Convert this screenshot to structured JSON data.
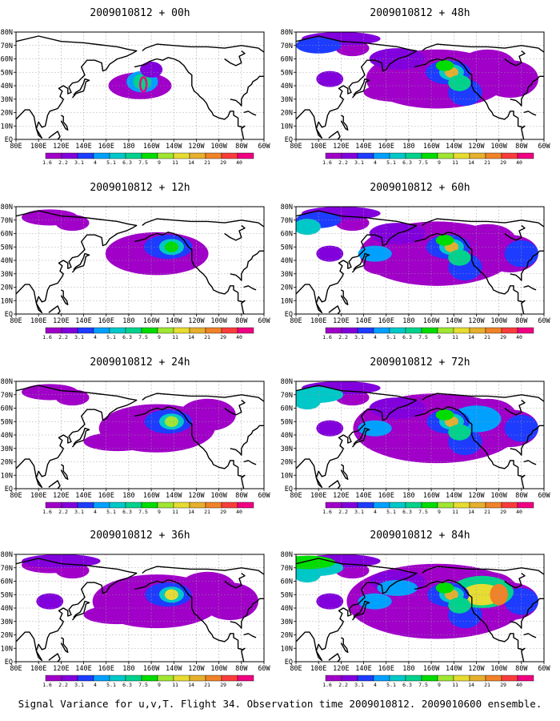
{
  "figure": {
    "caption": "Signal Variance for u,v,T. Flight 34. Observation time 2009010812. 2009010600 ensemble."
  },
  "axes": {
    "x_ticks": [
      "80E",
      "100E",
      "120E",
      "140E",
      "160E",
      "180",
      "160W",
      "140W",
      "120W",
      "100W",
      "80W",
      "60W"
    ],
    "y_ticks": [
      "80N",
      "70N",
      "60N",
      "50N",
      "40N",
      "30N",
      "20N",
      "10N",
      "EQ"
    ]
  },
  "colorbar": {
    "labels": [
      "1.6",
      "2.2",
      "3.1",
      "4",
      "5.1",
      "6.3",
      "7.5",
      "9",
      "11",
      "14",
      "21",
      "29",
      "40"
    ],
    "colors": [
      "#a000c8",
      "#8200dc",
      "#1e3cff",
      "#00a0ff",
      "#00c8c8",
      "#00d28c",
      "#00dc00",
      "#a0e632",
      "#e6dc32",
      "#e6af2d",
      "#f08228",
      "#fa3c3c",
      "#f00082"
    ]
  },
  "panels": [
    {
      "id": "p00",
      "title": "2009010812 + 00h",
      "level": 0
    },
    {
      "id": "p48",
      "title": "2009010812 + 48h",
      "level": 4
    },
    {
      "id": "p12",
      "title": "2009010812 + 12h",
      "level": 1
    },
    {
      "id": "p60",
      "title": "2009010812 + 60h",
      "level": 5
    },
    {
      "id": "p24",
      "title": "2009010812 + 24h",
      "level": 2
    },
    {
      "id": "p72",
      "title": "2009010812 + 72h",
      "level": 6
    },
    {
      "id": "p36",
      "title": "2009010812 + 36h",
      "level": 3
    },
    {
      "id": "p84",
      "title": "2009010812 + 84h",
      "level": 7
    }
  ]
}
